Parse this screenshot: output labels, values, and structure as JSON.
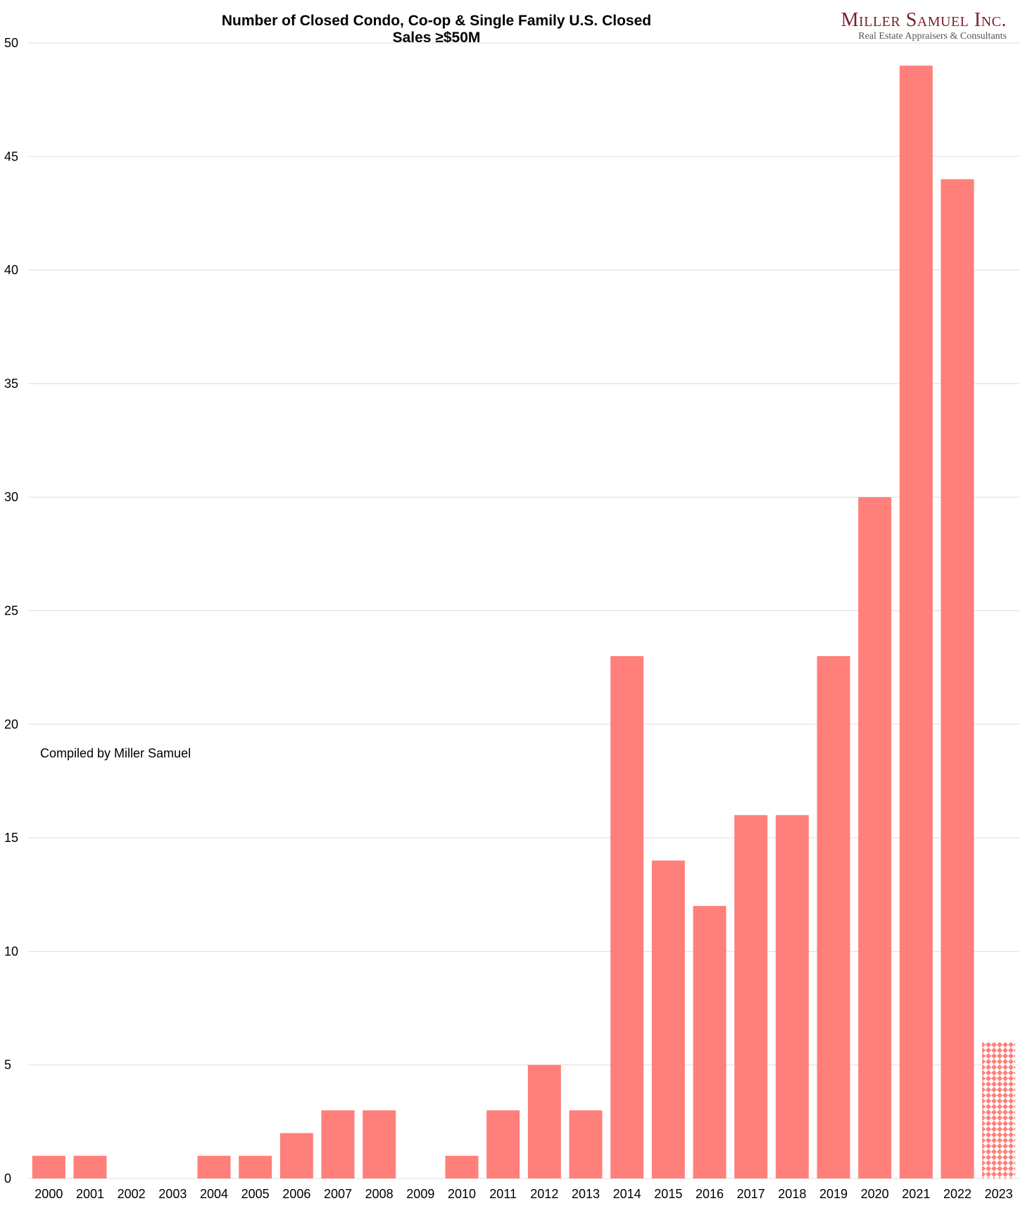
{
  "chart_data": {
    "type": "bar",
    "title": "Number of Closed Condo, Co-op & Single Family U.S. Closed Sales ≥$50M",
    "xlabel": "",
    "ylabel": "",
    "categories": [
      "2000",
      "2001",
      "2002",
      "2003",
      "2004",
      "2005",
      "2006",
      "2007",
      "2008",
      "2009",
      "2010",
      "2011",
      "2012",
      "2013",
      "2014",
      "2015",
      "2016",
      "2017",
      "2018",
      "2019",
      "2020",
      "2021",
      "2022",
      "2023"
    ],
    "values": [
      1,
      1,
      0,
      0,
      1,
      1,
      2,
      3,
      3,
      0,
      1,
      3,
      5,
      3,
      23,
      14,
      12,
      16,
      16,
      23,
      30,
      49,
      44,
      6
    ],
    "ylim": [
      0,
      50
    ],
    "yticks": [
      0,
      5,
      10,
      15,
      20,
      25,
      30,
      35,
      40,
      45,
      50
    ],
    "grid": true,
    "bar_color": "#ff7f7a",
    "partial_year_pattern": "2023"
  },
  "note": "Compiled by Miller Samuel",
  "logo": {
    "name": "Miller Samuel Inc.",
    "tagline": "Real Estate Appraisers & Consultants"
  }
}
